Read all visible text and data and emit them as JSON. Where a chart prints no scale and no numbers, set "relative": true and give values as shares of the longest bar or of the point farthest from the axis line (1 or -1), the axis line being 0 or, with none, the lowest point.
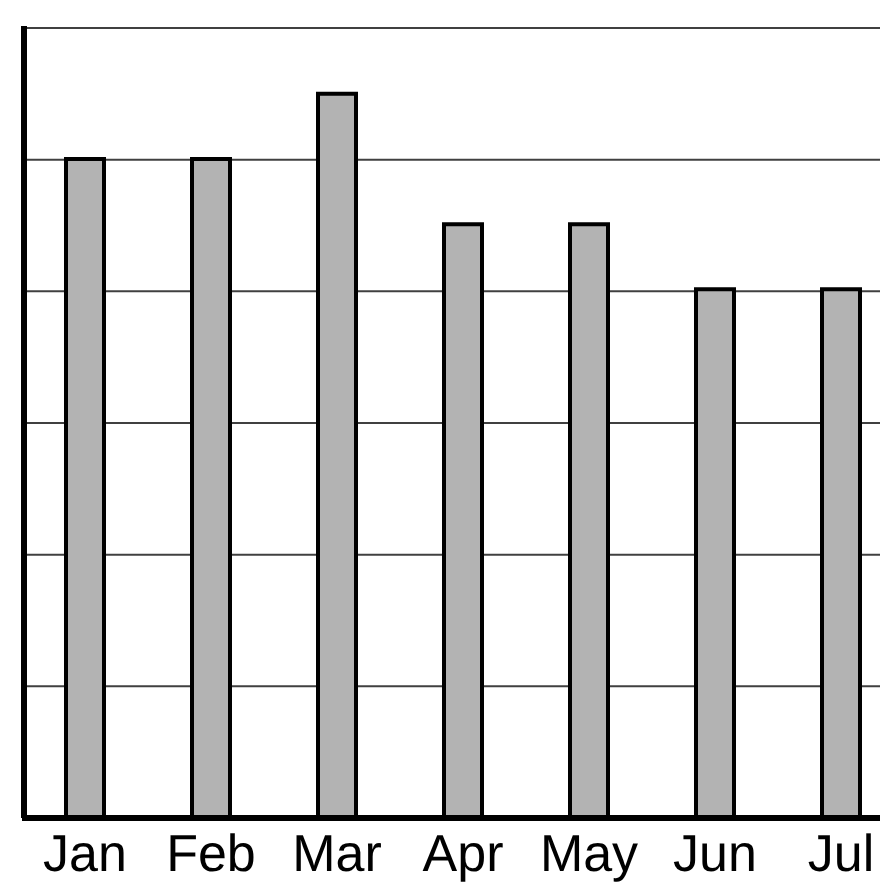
{
  "chart_data": {
    "type": "bar",
    "relative": true,
    "categories": [
      "Jan",
      "Feb",
      "Mar",
      "Apr",
      "May",
      "Jun",
      "Jul"
    ],
    "values": [
      0.91,
      0.91,
      1,
      0.82,
      0.82,
      0.73,
      0.73
    ],
    "color": "#b3b3b3",
    "grid": "y"
  }
}
